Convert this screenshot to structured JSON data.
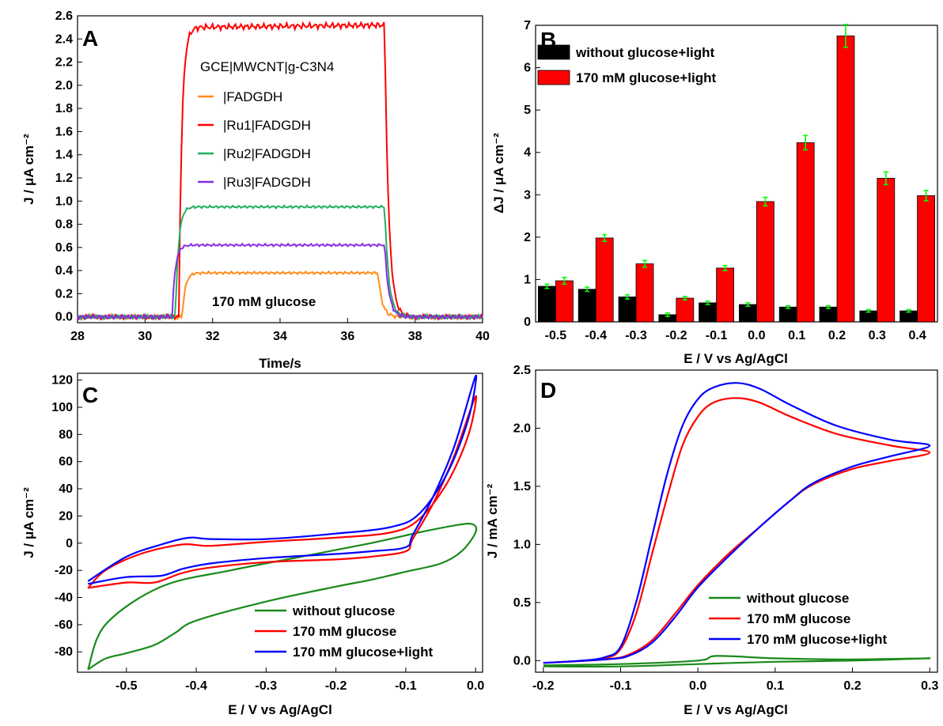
{
  "chart_data": [
    {
      "panel": "A",
      "type": "line",
      "xlabel": "Time/s",
      "ylabel": "J / μA cm⁻²",
      "xlim": [
        28,
        40
      ],
      "ylim": [
        -0.05,
        2.6
      ],
      "xticks": [
        "28",
        "30",
        "32",
        "34",
        "36",
        "38",
        "40"
      ],
      "yticks": [
        "0.0",
        "0.2",
        "0.4",
        "0.6",
        "0.8",
        "1.0",
        "1.2",
        "1.4",
        "1.6",
        "1.8",
        "2.0",
        "2.2",
        "2.4",
        "2.6"
      ],
      "legend_title": "GCE|MWCNT|g-C3N4",
      "annotation": "170 mM glucose",
      "series": [
        {
          "name": "|FADGDH",
          "color": "#ff8c1a",
          "on": 31.1,
          "off": 36.9,
          "plateau": 0.38
        },
        {
          "name": "|Ru1|FADGDH",
          "color": "#ff0000",
          "on": 31.0,
          "off": 37.1,
          "plateau": 2.5
        },
        {
          "name": "|Ru2|FADGDH",
          "color": "#22b060",
          "on": 30.9,
          "off": 37.1,
          "plateau": 0.95
        },
        {
          "name": "|Ru3|FADGDH",
          "color": "#8a2be2",
          "on": 30.8,
          "off": 37.1,
          "plateau": 0.62
        }
      ]
    },
    {
      "panel": "B",
      "type": "bar",
      "xlabel": "E / V vs Ag/AgCl",
      "ylabel": "ΔJ / μA cm⁻²",
      "ylim": [
        0,
        7
      ],
      "yticks": [
        "0",
        "1",
        "2",
        "3",
        "4",
        "5",
        "6",
        "7"
      ],
      "categories": [
        "-0.5",
        "-0.4",
        "-0.3",
        "-0.2",
        "-0.1",
        "0.0",
        "0.1",
        "0.2",
        "0.3",
        "0.4"
      ],
      "series": [
        {
          "name": "without glucose+light",
          "color": "#000000",
          "values": [
            0.84,
            0.77,
            0.59,
            0.17,
            0.45,
            0.41,
            0.35,
            0.35,
            0.26,
            0.26
          ],
          "errors": [
            0.05,
            0.05,
            0.05,
            0.04,
            0.04,
            0.04,
            0.03,
            0.03,
            0.03,
            0.03
          ]
        },
        {
          "name": "170 mM glucose+light",
          "color": "#ff0000",
          "values": [
            0.97,
            1.98,
            1.37,
            0.56,
            1.27,
            2.84,
            4.23,
            6.75,
            3.39,
            2.98
          ],
          "errors": [
            0.08,
            0.08,
            0.08,
            0.04,
            0.06,
            0.1,
            0.17,
            0.27,
            0.15,
            0.12
          ]
        }
      ],
      "error_color": "#00ff00"
    },
    {
      "panel": "C",
      "type": "line",
      "xlabel": "E / V vs Ag/AgCl",
      "ylabel": "J / μA cm⁻²",
      "xlim": [
        -0.57,
        0.01
      ],
      "ylim": [
        -95,
        125
      ],
      "xticks": [
        "-0.5",
        "-0.4",
        "-0.3",
        "-0.2",
        "-0.1",
        "0.0"
      ],
      "yticks": [
        "-80",
        "-60",
        "-40",
        "-20",
        "0",
        "20",
        "40",
        "60",
        "80",
        "100",
        "120"
      ],
      "series": [
        {
          "name": "without glucose",
          "color": "#1a8a1a",
          "points": [
            [
              -0.555,
              -93
            ],
            [
              -0.53,
              -85
            ],
            [
              -0.5,
              -81
            ],
            [
              -0.46,
              -75
            ],
            [
              -0.43,
              -66
            ],
            [
              -0.4,
              -57
            ],
            [
              -0.3,
              -43
            ],
            [
              -0.2,
              -32
            ],
            [
              -0.15,
              -27
            ],
            [
              -0.1,
              -21
            ],
            [
              -0.05,
              -15
            ],
            [
              -0.02,
              -6
            ],
            [
              0.0,
              8
            ],
            [
              -0.005,
              14
            ],
            [
              -0.03,
              13
            ],
            [
              -0.08,
              8
            ],
            [
              -0.15,
              0
            ],
            [
              -0.25,
              -10
            ],
            [
              -0.35,
              -20
            ],
            [
              -0.45,
              -32
            ],
            [
              -0.53,
              -60
            ],
            [
              -0.555,
              -93
            ]
          ]
        },
        {
          "name": "170 mM glucose",
          "color": "#ff0000",
          "points": [
            [
              -0.555,
              -33
            ],
            [
              -0.5,
              -29
            ],
            [
              -0.46,
              -29
            ],
            [
              -0.42,
              -22
            ],
            [
              -0.38,
              -18
            ],
            [
              -0.3,
              -14
            ],
            [
              -0.2,
              -12
            ],
            [
              -0.15,
              -10
            ],
            [
              -0.1,
              -6
            ],
            [
              -0.09,
              3
            ],
            [
              -0.06,
              30
            ],
            [
              -0.03,
              65
            ],
            [
              0.0,
              108
            ],
            [
              -0.01,
              80
            ],
            [
              -0.04,
              45
            ],
            [
              -0.08,
              18
            ],
            [
              -0.12,
              8
            ],
            [
              -0.2,
              4
            ],
            [
              -0.3,
              1
            ],
            [
              -0.38,
              -2
            ],
            [
              -0.42,
              -1
            ],
            [
              -0.48,
              -8
            ],
            [
              -0.53,
              -20
            ],
            [
              -0.555,
              -33
            ]
          ]
        },
        {
          "name": "170 mM glucose+light",
          "color": "#0000ff",
          "points": [
            [
              -0.555,
              -30
            ],
            [
              -0.5,
              -25
            ],
            [
              -0.45,
              -24
            ],
            [
              -0.42,
              -19
            ],
            [
              -0.38,
              -15
            ],
            [
              -0.3,
              -11
            ],
            [
              -0.2,
              -8
            ],
            [
              -0.15,
              -6
            ],
            [
              -0.1,
              -3
            ],
            [
              -0.09,
              6
            ],
            [
              -0.06,
              35
            ],
            [
              -0.03,
              72
            ],
            [
              0.0,
              123
            ],
            [
              -0.01,
              92
            ],
            [
              -0.04,
              52
            ],
            [
              -0.08,
              22
            ],
            [
              -0.12,
              12
            ],
            [
              -0.2,
              7
            ],
            [
              -0.3,
              3
            ],
            [
              -0.38,
              3
            ],
            [
              -0.41,
              4
            ],
            [
              -0.45,
              -1
            ],
            [
              -0.5,
              -10
            ],
            [
              -0.555,
              -28
            ]
          ]
        }
      ]
    },
    {
      "panel": "D",
      "type": "line",
      "xlabel": "E / V vs Ag/AgCl",
      "ylabel": "J / mA cm⁻²",
      "xlim": [
        -0.21,
        0.31
      ],
      "ylim": [
        -0.1,
        2.5
      ],
      "xticks": [
        "-0.2",
        "-0.1",
        "0.0",
        "0.1",
        "0.2",
        "0.3"
      ],
      "yticks": [
        "0.0",
        "0.5",
        "1.0",
        "1.5",
        "2.0",
        "2.5"
      ],
      "series": [
        {
          "name": "without glucose",
          "color": "#1a8a1a",
          "points": [
            [
              -0.2,
              -0.04
            ],
            [
              -0.1,
              -0.03
            ],
            [
              0.0,
              0.0
            ],
            [
              0.025,
              0.04
            ],
            [
              0.1,
              0.02
            ],
            [
              0.2,
              0.01
            ],
            [
              0.3,
              0.02
            ],
            [
              0.2,
              0.0
            ],
            [
              0.1,
              -0.01
            ],
            [
              0.0,
              -0.03
            ],
            [
              -0.1,
              -0.05
            ],
            [
              -0.2,
              -0.05
            ]
          ]
        },
        {
          "name": "170 mM glucose",
          "color": "#ff0000",
          "points": [
            [
              -0.2,
              -0.02
            ],
            [
              -0.15,
              0.0
            ],
            [
              -0.12,
              0.02
            ],
            [
              -0.1,
              0.1
            ],
            [
              -0.08,
              0.4
            ],
            [
              -0.06,
              0.9
            ],
            [
              -0.04,
              1.4
            ],
            [
              -0.02,
              1.85
            ],
            [
              0.0,
              2.1
            ],
            [
              0.02,
              2.22
            ],
            [
              0.05,
              2.26
            ],
            [
              0.08,
              2.22
            ],
            [
              0.12,
              2.1
            ],
            [
              0.18,
              1.95
            ],
            [
              0.25,
              1.85
            ],
            [
              0.3,
              1.79
            ],
            [
              0.25,
              1.72
            ],
            [
              0.2,
              1.65
            ],
            [
              0.15,
              1.52
            ],
            [
              0.12,
              1.38
            ],
            [
              0.08,
              1.15
            ],
            [
              0.04,
              0.92
            ],
            [
              0.0,
              0.65
            ],
            [
              -0.03,
              0.4
            ],
            [
              -0.06,
              0.17
            ],
            [
              -0.09,
              0.05
            ],
            [
              -0.12,
              0.01
            ],
            [
              -0.2,
              -0.02
            ]
          ]
        },
        {
          "name": "170 mM glucose+light",
          "color": "#0000ff",
          "points": [
            [
              -0.2,
              -0.02
            ],
            [
              -0.15,
              0.0
            ],
            [
              -0.12,
              0.03
            ],
            [
              -0.1,
              0.12
            ],
            [
              -0.08,
              0.5
            ],
            [
              -0.06,
              1.05
            ],
            [
              -0.04,
              1.6
            ],
            [
              -0.02,
              2.02
            ],
            [
              0.0,
              2.25
            ],
            [
              0.02,
              2.35
            ],
            [
              0.05,
              2.39
            ],
            [
              0.08,
              2.34
            ],
            [
              0.12,
              2.2
            ],
            [
              0.18,
              2.02
            ],
            [
              0.25,
              1.9
            ],
            [
              0.3,
              1.85
            ],
            [
              0.25,
              1.76
            ],
            [
              0.2,
              1.67
            ],
            [
              0.15,
              1.53
            ],
            [
              0.12,
              1.38
            ],
            [
              0.08,
              1.15
            ],
            [
              0.04,
              0.9
            ],
            [
              0.0,
              0.63
            ],
            [
              -0.03,
              0.37
            ],
            [
              -0.06,
              0.15
            ],
            [
              -0.09,
              0.04
            ],
            [
              -0.12,
              0.01
            ],
            [
              -0.2,
              -0.02
            ]
          ]
        }
      ]
    }
  ]
}
